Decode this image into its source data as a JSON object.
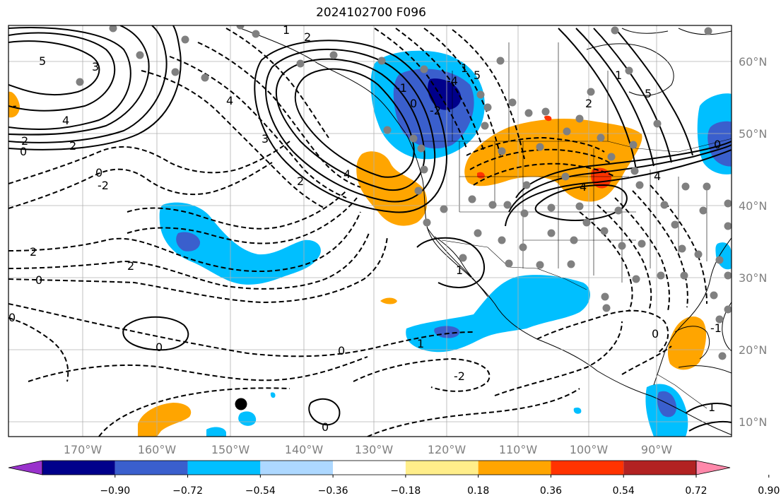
{
  "title": "2024102700 F096",
  "latitude_labels": [
    "60°N",
    "50°N",
    "40°N",
    "30°N",
    "20°N",
    "10°N"
  ],
  "longitude_labels": [
    "170°W",
    "160°W",
    "150°W",
    "140°W",
    "130°W",
    "120°W",
    "110°W",
    "100°W",
    "90°W"
  ],
  "colorbar": {
    "tick_labels": [
      "−0.90",
      "−0.72",
      "−0.54",
      "−0.36",
      "−0.18",
      "0.18",
      "0.36",
      "0.54",
      "0.72",
      "0.90"
    ],
    "colors": [
      "#9932CC",
      "#00008B",
      "#3A5FCD",
      "#00BFFF",
      "#ADD8FF",
      "#FFFFFF",
      "#FFEE8A",
      "#FFA500",
      "#FF3300",
      "#B22222",
      "#FF88AA"
    ]
  },
  "contour_labels": [
    "5",
    "3",
    "2",
    "0",
    "4",
    "2",
    "-",
    "2",
    "1",
    "0",
    "-1",
    "4",
    "2",
    "3",
    "4",
    "0",
    "-2",
    "-4",
    "1",
    "4",
    "2",
    "5",
    "0",
    "1",
    "0",
    "2",
    "2",
    "0",
    "-2",
    "0",
    "1",
    "0",
    "-1",
    "1",
    "0",
    "-2",
    "0",
    "1",
    "5",
    "4"
  ],
  "shading_colors": {
    "light_blue": "#00BFFF",
    "medium_blue": "#3A5FCD",
    "dark_blue": "#00008B",
    "orange": "#FFA500",
    "red_orange": "#FF3300"
  },
  "stations_color": "#808080"
}
